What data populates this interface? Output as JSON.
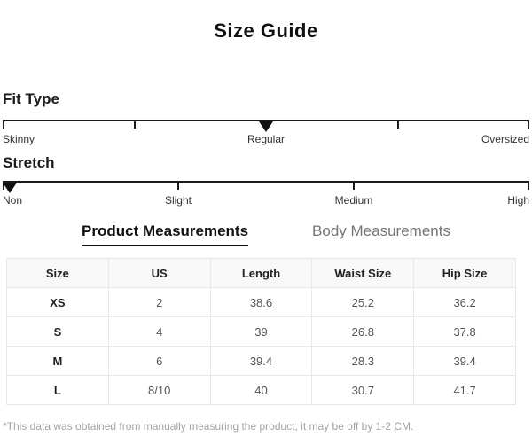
{
  "title": "Size Guide",
  "fit_type": {
    "label": "Fit Type",
    "options": [
      "Skinny",
      "Regular",
      "Oversized"
    ],
    "selected": "Regular",
    "marker_position_percent": 50,
    "tick_positions_percent": [
      0,
      25,
      50,
      75,
      100
    ]
  },
  "stretch": {
    "label": "Stretch",
    "options": [
      "Non",
      "Slight",
      "Medium",
      "High"
    ],
    "selected": "Non",
    "marker_position_percent": 0,
    "tick_positions_percent": [
      0,
      33.33,
      66.67,
      100
    ]
  },
  "tabs": [
    {
      "label": "Product Measurements",
      "active": true
    },
    {
      "label": "Body Measurements",
      "active": false
    }
  ],
  "table": {
    "headers": [
      "Size",
      "US",
      "Length",
      "Waist Size",
      "Hip Size"
    ],
    "rows": [
      [
        "XS",
        "2",
        "38.6",
        "25.2",
        "36.2"
      ],
      [
        "S",
        "4",
        "39",
        "26.8",
        "37.8"
      ],
      [
        "M",
        "6",
        "39.4",
        "28.3",
        "39.4"
      ],
      [
        "L",
        "8/10",
        "40",
        "30.7",
        "41.7"
      ]
    ]
  },
  "footnote": "*This data was obtained from manually measuring the product, it may be off by 1-2 CM.",
  "colors": {
    "text_primary": "#111111",
    "slider_line": "#1a1a1a",
    "inactive_tab": "#757575",
    "table_border": "#e8e8e8",
    "table_header_bg": "#f8f8f8",
    "cell_text": "#555555",
    "footnote_text": "#a2a2a2",
    "background": "#ffffff"
  }
}
